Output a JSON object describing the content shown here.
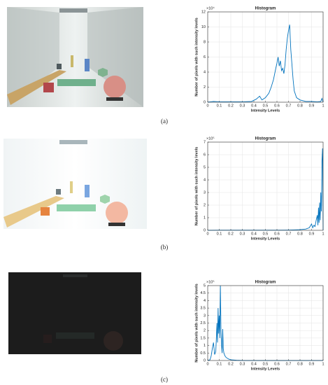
{
  "chart_data": [
    {
      "type": "line",
      "panel_label": "(a)",
      "title": "Histogram",
      "xlabel": "Intensity Levels",
      "ylabel": "Number of pixels with such intensity levels",
      "y_multiplier": "×10⁴",
      "color": "#0072bd",
      "grid": true,
      "x": [
        0,
        0.05,
        0.1,
        0.2,
        0.3,
        0.38,
        0.42,
        0.45,
        0.47,
        0.5,
        0.53,
        0.55,
        0.57,
        0.59,
        0.6,
        0.61,
        0.62,
        0.63,
        0.64,
        0.65,
        0.66,
        0.67,
        0.68,
        0.69,
        0.7,
        0.71,
        0.72,
        0.73,
        0.74,
        0.75,
        0.77,
        0.8,
        0.85,
        0.9,
        0.95,
        0.98,
        0.99,
        1
      ],
      "values": [
        0,
        0.1,
        0.05,
        0.05,
        0.05,
        0.1,
        0.4,
        0.8,
        0.3,
        0.6,
        1.2,
        2,
        3,
        4.5,
        5.2,
        6,
        4.8,
        5.5,
        4.2,
        4.5,
        3.8,
        5,
        7,
        8.5,
        9.5,
        10.3,
        7,
        5,
        3,
        1.5,
        0.6,
        0.3,
        0.1,
        0.1,
        0.05,
        0.1,
        0.5,
        0
      ],
      "xlim": [
        0,
        1
      ],
      "xticks": [
        0,
        0.1,
        0.2,
        0.3,
        0.4,
        0.5,
        0.6,
        0.7,
        0.8,
        0.9,
        1
      ],
      "ylim": [
        0,
        12
      ],
      "yticks": [
        0,
        2,
        4,
        6,
        8,
        10,
        12
      ]
    },
    {
      "type": "line",
      "panel_label": "(b)",
      "title": "Histogram",
      "xlabel": "Intensity Levels",
      "ylabel": "Number of pixels with such intensity levels",
      "y_multiplier": "×10⁵",
      "color": "#0072bd",
      "grid": true,
      "x": [
        0,
        0.1,
        0.2,
        0.3,
        0.4,
        0.5,
        0.6,
        0.7,
        0.8,
        0.85,
        0.88,
        0.9,
        0.91,
        0.92,
        0.93,
        0.94,
        0.95,
        0.955,
        0.96,
        0.965,
        0.97,
        0.975,
        0.98,
        0.985,
        0.99,
        0.995,
        1
      ],
      "values": [
        0,
        0.01,
        0.01,
        0.01,
        0.01,
        0.01,
        0.01,
        0.02,
        0.05,
        0.1,
        0.2,
        0.5,
        0.2,
        0.4,
        0.3,
        0.8,
        1.2,
        0.4,
        1.8,
        0.6,
        2.2,
        0.8,
        3,
        1.5,
        5.5,
        6.5,
        0
      ],
      "xlim": [
        0,
        1
      ],
      "xticks": [
        0,
        0.1,
        0.2,
        0.3,
        0.4,
        0.5,
        0.6,
        0.7,
        0.8,
        0.9,
        1
      ],
      "ylim": [
        0,
        7
      ],
      "yticks": [
        0,
        1,
        2,
        3,
        4,
        5,
        6,
        7
      ]
    },
    {
      "type": "line",
      "panel_label": "(c)",
      "title": "Histogram",
      "xlabel": "Intensity Levels",
      "ylabel": "Number of pixels with such intensity levels",
      "y_multiplier": "×10⁵",
      "color": "#0072bd",
      "grid": true,
      "x": [
        0,
        0.02,
        0.03,
        0.04,
        0.05,
        0.06,
        0.07,
        0.075,
        0.08,
        0.085,
        0.09,
        0.095,
        0.1,
        0.105,
        0.11,
        0.115,
        0.12,
        0.125,
        0.13,
        0.135,
        0.14,
        0.15,
        0.16,
        0.18,
        0.2,
        0.25,
        0.3,
        0.5,
        1
      ],
      "values": [
        0,
        0.05,
        0.3,
        0.8,
        1.2,
        0.4,
        0.6,
        1.5,
        2.5,
        1.2,
        3.5,
        1.8,
        3,
        1.5,
        5,
        2,
        1,
        0.5,
        2.1,
        0.8,
        0.5,
        0.3,
        0.2,
        0.1,
        0.05,
        0.02,
        0,
        0,
        0
      ],
      "xlim": [
        0,
        1
      ],
      "xticks": [
        0,
        0.1,
        0.2,
        0.3,
        0.4,
        0.5,
        0.6,
        0.7,
        0.8,
        0.9,
        1
      ],
      "ylim": [
        0,
        5
      ],
      "yticks": [
        0,
        0.5,
        1,
        1.5,
        2,
        2.5,
        3,
        3.5,
        4,
        4.5,
        5
      ]
    }
  ]
}
